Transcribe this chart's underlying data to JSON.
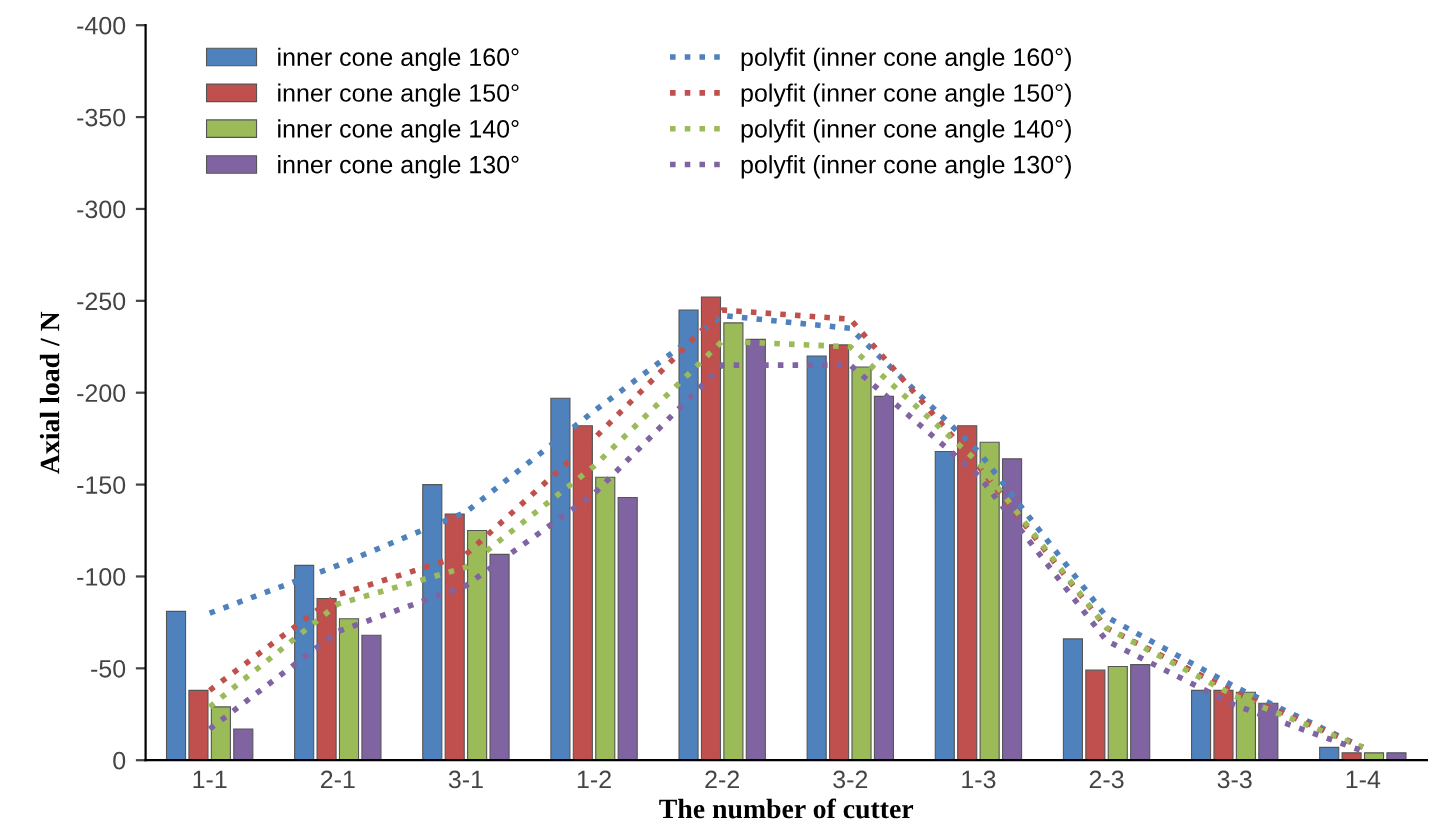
{
  "chart_data": {
    "type": "bar",
    "xlabel": "The number of cutter",
    "ylabel": "Axial load / N",
    "categories": [
      "1-1",
      "2-1",
      "3-1",
      "1-2",
      "2-2",
      "3-2",
      "1-3",
      "2-3",
      "3-3",
      "1-4"
    ],
    "series": [
      {
        "name": "inner cone angle 160°",
        "color": "#4f81bd",
        "values": [
          -81,
          -106,
          -150,
          -197,
          -245,
          -220,
          -168,
          -66,
          -38,
          -7
        ]
      },
      {
        "name": "inner cone angle 150°",
        "color": "#c0504d",
        "values": [
          -38,
          -88,
          -134,
          -182,
          -252,
          -226,
          -182,
          -49,
          -38,
          -4
        ]
      },
      {
        "name": "inner cone angle 140°",
        "color": "#9bbb59",
        "values": [
          -29,
          -77,
          -125,
          -154,
          -238,
          -214,
          -173,
          -51,
          -37,
          -4
        ]
      },
      {
        "name": "inner cone angle 130°",
        "color": "#8064a2",
        "values": [
          -17,
          -68,
          -112,
          -143,
          -229,
          -198,
          -164,
          -52,
          -31,
          -4
        ]
      },
      {
        "name": "polyfit (inner cone angle 160°)",
        "type": "line",
        "line_style": "dotted",
        "marker": "none",
        "color": "#4f81bd",
        "values": [
          -80,
          -106,
          -135,
          -190,
          -242,
          -235,
          -168,
          -78,
          -40,
          -7
        ]
      },
      {
        "name": "polyfit (inner cone angle 150°)",
        "type": "line",
        "line_style": "dotted",
        "marker": "none",
        "color": "#c0504d",
        "values": [
          -38,
          -90,
          -112,
          -175,
          -245,
          -240,
          -160,
          -72,
          -37,
          -7
        ]
      },
      {
        "name": "polyfit (inner cone angle 140°)",
        "type": "line",
        "line_style": "dotted",
        "marker": "none",
        "color": "#9bbb59",
        "values": [
          -29,
          -85,
          -105,
          -160,
          -228,
          -225,
          -162,
          -72,
          -35,
          -7
        ]
      },
      {
        "name": "polyfit (inner cone angle 130°)",
        "type": "line",
        "line_style": "dotted",
        "marker": "none",
        "color": "#8064a2",
        "values": [
          -17,
          -70,
          -95,
          -145,
          -215,
          -215,
          -155,
          -65,
          -30,
          -5
        ]
      }
    ],
    "ylim": [
      0,
      -400
    ],
    "yticks": [
      0,
      -50,
      -100,
      -150,
      -200,
      -250,
      -300,
      -350,
      -400
    ],
    "grid": false,
    "legend": "top left"
  }
}
